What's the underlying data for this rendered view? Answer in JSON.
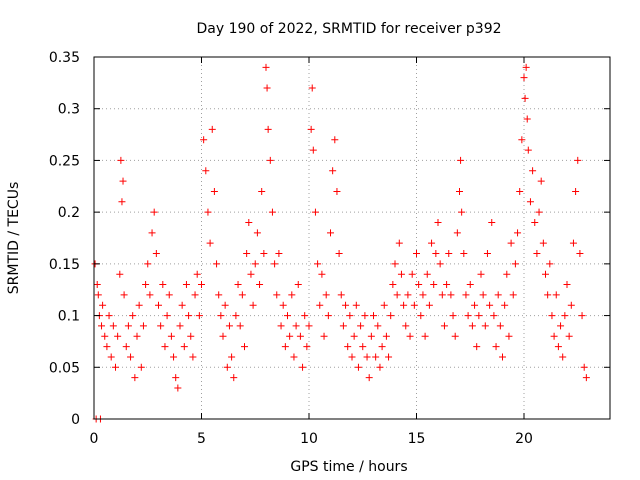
{
  "chart_data": {
    "type": "scatter",
    "title": "Day 190 of 2022, SRMTID for receiver p392",
    "xlabel": "GPS time / hours",
    "ylabel": "SRMTID / TECUs",
    "xlim": [
      0,
      24
    ],
    "ylim": [
      0,
      0.35
    ],
    "xticks": [
      0,
      5,
      10,
      15,
      20
    ],
    "xtick_labels": [
      "0",
      "5",
      "10",
      "15",
      "20"
    ],
    "yticks": [
      0,
      0.05,
      0.1,
      0.15,
      0.2,
      0.25,
      0.3,
      0.35
    ],
    "ytick_labels": [
      "0",
      "0.05",
      "0.1",
      "0.15",
      "0.2",
      "0.25",
      "0.3",
      "0.35"
    ],
    "grid": true,
    "marker": "+",
    "series": [
      {
        "name": "SRMTID",
        "color": "#ff0000",
        "points": [
          [
            0.05,
            0.15
          ],
          [
            0.1,
            0.0
          ],
          [
            0.15,
            0.13
          ],
          [
            0.2,
            0.12
          ],
          [
            0.25,
            0.1
          ],
          [
            0.3,
            0.0
          ],
          [
            0.35,
            0.09
          ],
          [
            0.4,
            0.11
          ],
          [
            0.5,
            0.08
          ],
          [
            0.6,
            0.07
          ],
          [
            0.7,
            0.1
          ],
          [
            0.8,
            0.06
          ],
          [
            0.9,
            0.09
          ],
          [
            1.0,
            0.05
          ],
          [
            1.1,
            0.08
          ],
          [
            1.2,
            0.14
          ],
          [
            1.25,
            0.25
          ],
          [
            1.3,
            0.21
          ],
          [
            1.35,
            0.23
          ],
          [
            1.4,
            0.12
          ],
          [
            1.5,
            0.07
          ],
          [
            1.6,
            0.09
          ],
          [
            1.7,
            0.06
          ],
          [
            1.8,
            0.1
          ],
          [
            1.9,
            0.04
          ],
          [
            2.0,
            0.08
          ],
          [
            2.1,
            0.11
          ],
          [
            2.2,
            0.05
          ],
          [
            2.3,
            0.09
          ],
          [
            2.4,
            0.13
          ],
          [
            2.5,
            0.15
          ],
          [
            2.6,
            0.12
          ],
          [
            2.7,
            0.18
          ],
          [
            2.8,
            0.2
          ],
          [
            2.9,
            0.16
          ],
          [
            3.0,
            0.11
          ],
          [
            3.1,
            0.09
          ],
          [
            3.2,
            0.13
          ],
          [
            3.3,
            0.07
          ],
          [
            3.4,
            0.1
          ],
          [
            3.5,
            0.12
          ],
          [
            3.6,
            0.08
          ],
          [
            3.7,
            0.06
          ],
          [
            3.8,
            0.04
          ],
          [
            3.9,
            0.03
          ],
          [
            4.0,
            0.09
          ],
          [
            4.1,
            0.11
          ],
          [
            4.2,
            0.07
          ],
          [
            4.3,
            0.13
          ],
          [
            4.4,
            0.1
          ],
          [
            4.5,
            0.08
          ],
          [
            4.6,
            0.06
          ],
          [
            4.7,
            0.12
          ],
          [
            4.8,
            0.14
          ],
          [
            4.9,
            0.1
          ],
          [
            5.0,
            0.13
          ],
          [
            5.1,
            0.27
          ],
          [
            5.2,
            0.24
          ],
          [
            5.3,
            0.2
          ],
          [
            5.4,
            0.17
          ],
          [
            5.5,
            0.28
          ],
          [
            5.6,
            0.22
          ],
          [
            5.7,
            0.15
          ],
          [
            5.8,
            0.12
          ],
          [
            5.9,
            0.1
          ],
          [
            6.0,
            0.08
          ],
          [
            6.1,
            0.11
          ],
          [
            6.2,
            0.05
          ],
          [
            6.3,
            0.09
          ],
          [
            6.4,
            0.06
          ],
          [
            6.5,
            0.04
          ],
          [
            6.6,
            0.1
          ],
          [
            6.7,
            0.13
          ],
          [
            6.8,
            0.09
          ],
          [
            6.9,
            0.12
          ],
          [
            7.0,
            0.07
          ],
          [
            7.1,
            0.16
          ],
          [
            7.2,
            0.19
          ],
          [
            7.3,
            0.14
          ],
          [
            7.4,
            0.11
          ],
          [
            7.5,
            0.15
          ],
          [
            7.6,
            0.18
          ],
          [
            7.7,
            0.13
          ],
          [
            7.8,
            0.22
          ],
          [
            7.9,
            0.16
          ],
          [
            8.0,
            0.34
          ],
          [
            8.05,
            0.32
          ],
          [
            8.1,
            0.28
          ],
          [
            8.2,
            0.25
          ],
          [
            8.3,
            0.2
          ],
          [
            8.4,
            0.15
          ],
          [
            8.5,
            0.12
          ],
          [
            8.6,
            0.16
          ],
          [
            8.7,
            0.09
          ],
          [
            8.8,
            0.11
          ],
          [
            8.9,
            0.07
          ],
          [
            9.0,
            0.1
          ],
          [
            9.1,
            0.08
          ],
          [
            9.2,
            0.12
          ],
          [
            9.3,
            0.06
          ],
          [
            9.4,
            0.09
          ],
          [
            9.5,
            0.13
          ],
          [
            9.6,
            0.08
          ],
          [
            9.7,
            0.05
          ],
          [
            9.8,
            0.1
          ],
          [
            9.9,
            0.07
          ],
          [
            10.0,
            0.09
          ],
          [
            10.1,
            0.28
          ],
          [
            10.15,
            0.32
          ],
          [
            10.2,
            0.26
          ],
          [
            10.3,
            0.2
          ],
          [
            10.4,
            0.15
          ],
          [
            10.5,
            0.11
          ],
          [
            10.6,
            0.14
          ],
          [
            10.7,
            0.08
          ],
          [
            10.8,
            0.12
          ],
          [
            10.9,
            0.1
          ],
          [
            11.0,
            0.18
          ],
          [
            11.1,
            0.24
          ],
          [
            11.2,
            0.27
          ],
          [
            11.3,
            0.22
          ],
          [
            11.4,
            0.16
          ],
          [
            11.5,
            0.12
          ],
          [
            11.6,
            0.09
          ],
          [
            11.7,
            0.11
          ],
          [
            11.8,
            0.07
          ],
          [
            11.9,
            0.1
          ],
          [
            12.0,
            0.06
          ],
          [
            12.1,
            0.08
          ],
          [
            12.2,
            0.11
          ],
          [
            12.3,
            0.05
          ],
          [
            12.4,
            0.09
          ],
          [
            12.5,
            0.07
          ],
          [
            12.6,
            0.1
          ],
          [
            12.7,
            0.06
          ],
          [
            12.8,
            0.04
          ],
          [
            12.9,
            0.08
          ],
          [
            13.0,
            0.1
          ],
          [
            13.1,
            0.06
          ],
          [
            13.2,
            0.09
          ],
          [
            13.3,
            0.05
          ],
          [
            13.4,
            0.07
          ],
          [
            13.5,
            0.11
          ],
          [
            13.6,
            0.08
          ],
          [
            13.7,
            0.06
          ],
          [
            13.8,
            0.1
          ],
          [
            13.9,
            0.13
          ],
          [
            14.0,
            0.15
          ],
          [
            14.1,
            0.12
          ],
          [
            14.2,
            0.17
          ],
          [
            14.3,
            0.14
          ],
          [
            14.4,
            0.11
          ],
          [
            14.5,
            0.09
          ],
          [
            14.6,
            0.12
          ],
          [
            14.7,
            0.08
          ],
          [
            14.8,
            0.14
          ],
          [
            14.9,
            0.11
          ],
          [
            15.0,
            0.16
          ],
          [
            15.1,
            0.13
          ],
          [
            15.2,
            0.1
          ],
          [
            15.3,
            0.12
          ],
          [
            15.4,
            0.08
          ],
          [
            15.5,
            0.14
          ],
          [
            15.6,
            0.11
          ],
          [
            15.7,
            0.17
          ],
          [
            15.8,
            0.13
          ],
          [
            15.9,
            0.16
          ],
          [
            16.0,
            0.19
          ],
          [
            16.1,
            0.15
          ],
          [
            16.2,
            0.12
          ],
          [
            16.3,
            0.09
          ],
          [
            16.4,
            0.13
          ],
          [
            16.5,
            0.16
          ],
          [
            16.6,
            0.12
          ],
          [
            16.7,
            0.1
          ],
          [
            16.8,
            0.08
          ],
          [
            16.9,
            0.18
          ],
          [
            17.0,
            0.22
          ],
          [
            17.05,
            0.25
          ],
          [
            17.1,
            0.2
          ],
          [
            17.2,
            0.16
          ],
          [
            17.3,
            0.12
          ],
          [
            17.4,
            0.1
          ],
          [
            17.5,
            0.13
          ],
          [
            17.6,
            0.09
          ],
          [
            17.7,
            0.11
          ],
          [
            17.8,
            0.07
          ],
          [
            17.9,
            0.1
          ],
          [
            18.0,
            0.14
          ],
          [
            18.1,
            0.12
          ],
          [
            18.2,
            0.09
          ],
          [
            18.3,
            0.16
          ],
          [
            18.4,
            0.11
          ],
          [
            18.5,
            0.19
          ],
          [
            18.6,
            0.1
          ],
          [
            18.7,
            0.07
          ],
          [
            18.8,
            0.12
          ],
          [
            18.9,
            0.09
          ],
          [
            19.0,
            0.06
          ],
          [
            19.1,
            0.11
          ],
          [
            19.2,
            0.14
          ],
          [
            19.3,
            0.08
          ],
          [
            19.4,
            0.17
          ],
          [
            19.5,
            0.12
          ],
          [
            19.6,
            0.15
          ],
          [
            19.7,
            0.18
          ],
          [
            19.8,
            0.22
          ],
          [
            19.9,
            0.27
          ],
          [
            20.0,
            0.33
          ],
          [
            20.05,
            0.31
          ],
          [
            20.1,
            0.34
          ],
          [
            20.15,
            0.29
          ],
          [
            20.2,
            0.26
          ],
          [
            20.3,
            0.21
          ],
          [
            20.4,
            0.24
          ],
          [
            20.5,
            0.19
          ],
          [
            20.6,
            0.16
          ],
          [
            20.7,
            0.2
          ],
          [
            20.8,
            0.23
          ],
          [
            20.9,
            0.17
          ],
          [
            21.0,
            0.14
          ],
          [
            21.1,
            0.12
          ],
          [
            21.2,
            0.15
          ],
          [
            21.3,
            0.1
          ],
          [
            21.4,
            0.08
          ],
          [
            21.5,
            0.12
          ],
          [
            21.6,
            0.07
          ],
          [
            21.7,
            0.09
          ],
          [
            21.8,
            0.06
          ],
          [
            21.9,
            0.1
          ],
          [
            22.0,
            0.13
          ],
          [
            22.1,
            0.08
          ],
          [
            22.2,
            0.11
          ],
          [
            22.3,
            0.17
          ],
          [
            22.4,
            0.22
          ],
          [
            22.5,
            0.25
          ],
          [
            22.6,
            0.16
          ],
          [
            22.7,
            0.1
          ],
          [
            22.8,
            0.05
          ],
          [
            22.9,
            0.04
          ]
        ]
      }
    ]
  }
}
